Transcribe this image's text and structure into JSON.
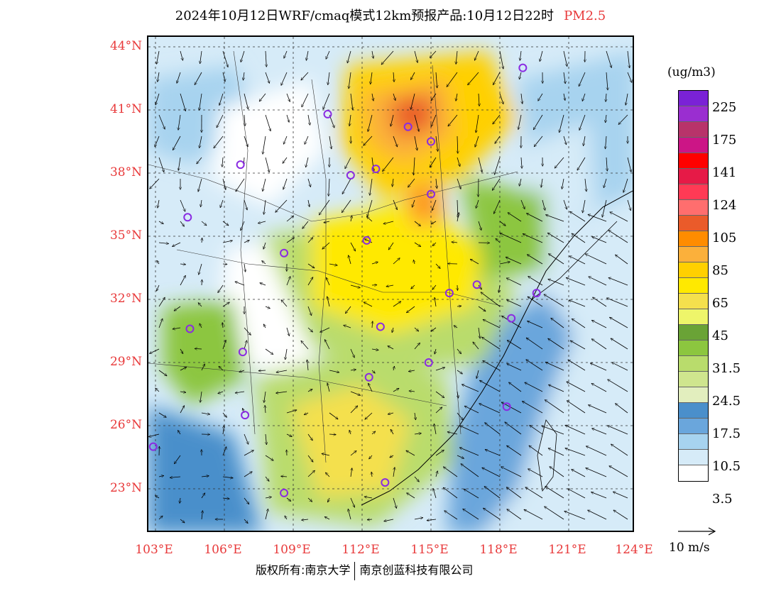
{
  "title": {
    "main": "2024年10月12日WRF/cmaq模式12km预报产品:10月12日22时",
    "product": "PM2.5"
  },
  "axes": {
    "lat_labels": [
      "44°N",
      "41°N",
      "38°N",
      "35°N",
      "32°N",
      "29°N",
      "26°N",
      "23°N"
    ],
    "lon_labels": [
      "103°E",
      "106°E",
      "109°E",
      "112°E",
      "115°E",
      "118°E",
      "121°E",
      "124°E"
    ]
  },
  "legend": {
    "unit": "(ug/m3)",
    "colors": [
      "#7a22d6",
      "#9a2ed0",
      "#b8336a",
      "#cc1586",
      "#ff0000",
      "#e61a47",
      "#ff3a55",
      "#ff6e6e",
      "#ea5b2a",
      "#ff8c00",
      "#fbb03b",
      "#ffd000",
      "#ffe900",
      "#f4e04d",
      "#eef56a",
      "#6aa336",
      "#8cc63f",
      "#b9dc6c",
      "#cfe58e",
      "#e2eebe",
      "#4a8fcb",
      "#6aa6dc",
      "#a7d3ef",
      "#d6ebf8",
      "#ffffff"
    ],
    "labels": [
      "225",
      "175",
      "141",
      "124",
      "105",
      "85",
      "65",
      "45",
      "31.5",
      "24.5",
      "17.5",
      "10.5",
      "3.5"
    ]
  },
  "wind_reference": {
    "label": "10 m/s"
  },
  "copyright": {
    "left": "版权所有:南京大学",
    "right": "南京创蓝科技有限公司"
  },
  "stations": [
    {
      "lon": 119.0,
      "lat": 43.0
    },
    {
      "lon": 110.5,
      "lat": 40.8
    },
    {
      "lon": 114.0,
      "lat": 40.2
    },
    {
      "lon": 115.0,
      "lat": 39.5
    },
    {
      "lon": 106.7,
      "lat": 38.4
    },
    {
      "lon": 111.5,
      "lat": 37.9
    },
    {
      "lon": 112.6,
      "lat": 38.2
    },
    {
      "lon": 115.0,
      "lat": 37.0
    },
    {
      "lon": 104.4,
      "lat": 35.9
    },
    {
      "lon": 112.2,
      "lat": 34.8
    },
    {
      "lon": 108.6,
      "lat": 34.2
    },
    {
      "lon": 117.0,
      "lat": 32.7
    },
    {
      "lon": 115.8,
      "lat": 32.3
    },
    {
      "lon": 119.6,
      "lat": 32.3
    },
    {
      "lon": 118.5,
      "lat": 31.1
    },
    {
      "lon": 104.5,
      "lat": 30.6
    },
    {
      "lon": 112.8,
      "lat": 30.7
    },
    {
      "lon": 106.8,
      "lat": 29.5
    },
    {
      "lon": 114.9,
      "lat": 29.0
    },
    {
      "lon": 112.3,
      "lat": 28.3
    },
    {
      "lon": 106.9,
      "lat": 26.5
    },
    {
      "lon": 118.3,
      "lat": 26.9
    },
    {
      "lon": 102.9,
      "lat": 25.0
    },
    {
      "lon": 113.0,
      "lat": 23.3
    },
    {
      "lon": 108.6,
      "lat": 22.8
    }
  ]
}
